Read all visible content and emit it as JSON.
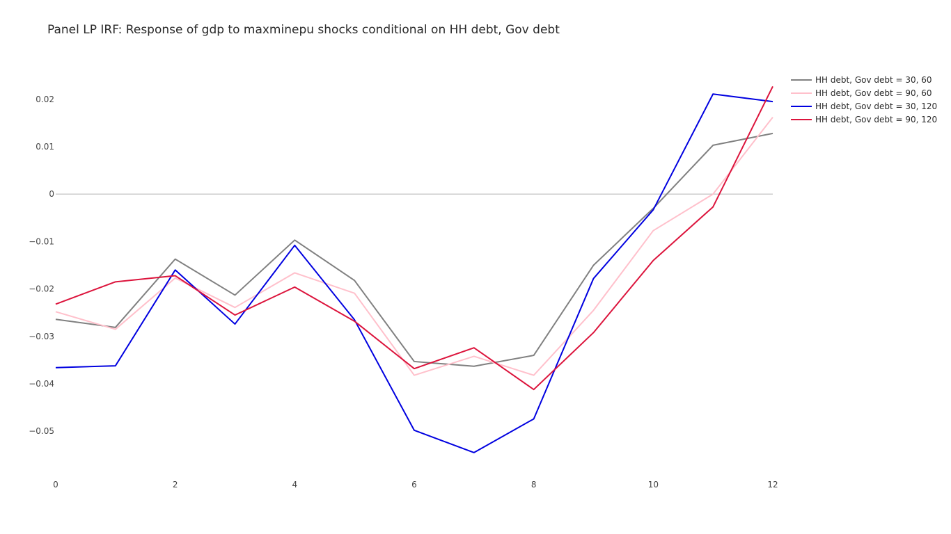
{
  "chart_data": {
    "type": "line",
    "title": "Panel LP IRF: Response of gdp to maxminepu shocks conditional on HH debt, Gov debt",
    "xlabel": "",
    "ylabel": "",
    "x": [
      0,
      1,
      2,
      3,
      4,
      5,
      6,
      7,
      8,
      9,
      10,
      11,
      12
    ],
    "xlim": [
      0,
      12
    ],
    "ylim": [
      -0.0595,
      0.0292
    ],
    "x_ticks": [
      0,
      2,
      4,
      6,
      8,
      10,
      12
    ],
    "x_tick_labels": [
      "0",
      "2",
      "4",
      "6",
      "8",
      "10",
      "12"
    ],
    "y_ticks": [
      0.02,
      0.01,
      0,
      -0.01,
      -0.02,
      -0.03,
      -0.04,
      -0.05
    ],
    "y_tick_labels": [
      "0.02",
      "0.01",
      "0",
      "−0.01",
      "−0.02",
      "−0.03",
      "−0.04",
      "−0.05"
    ],
    "grid": false,
    "zero_line": true,
    "legend_position": "top-right",
    "series": [
      {
        "name": "HH debt, Gov debt = 30, 60",
        "color": "#808080",
        "values": [
          -0.0264,
          -0.0281,
          -0.0137,
          -0.0213,
          -0.0097,
          -0.0182,
          -0.0353,
          -0.0363,
          -0.034,
          -0.015,
          -0.003,
          0.0103,
          0.0128
        ]
      },
      {
        "name": "HH debt, Gov debt = 90, 60",
        "color": "#ffc0cb",
        "values": [
          -0.0248,
          -0.0285,
          -0.0177,
          -0.0239,
          -0.0166,
          -0.0209,
          -0.0382,
          -0.0342,
          -0.0382,
          -0.0245,
          -0.0077,
          0.0,
          0.0162
        ]
      },
      {
        "name": "HH debt, Gov debt = 30, 120",
        "color": "#0000e0",
        "values": [
          -0.0366,
          -0.0362,
          -0.016,
          -0.0274,
          -0.0108,
          -0.0265,
          -0.0498,
          -0.0545,
          -0.0474,
          -0.0178,
          -0.0033,
          0.0211,
          0.0195
        ]
      },
      {
        "name": "HH debt, Gov debt = 90, 120",
        "color": "#dc143c",
        "values": [
          -0.0232,
          -0.0185,
          -0.0172,
          -0.0255,
          -0.0196,
          -0.0268,
          -0.0368,
          -0.0324,
          -0.0412,
          -0.0292,
          -0.014,
          -0.0027,
          0.0227
        ]
      }
    ]
  }
}
